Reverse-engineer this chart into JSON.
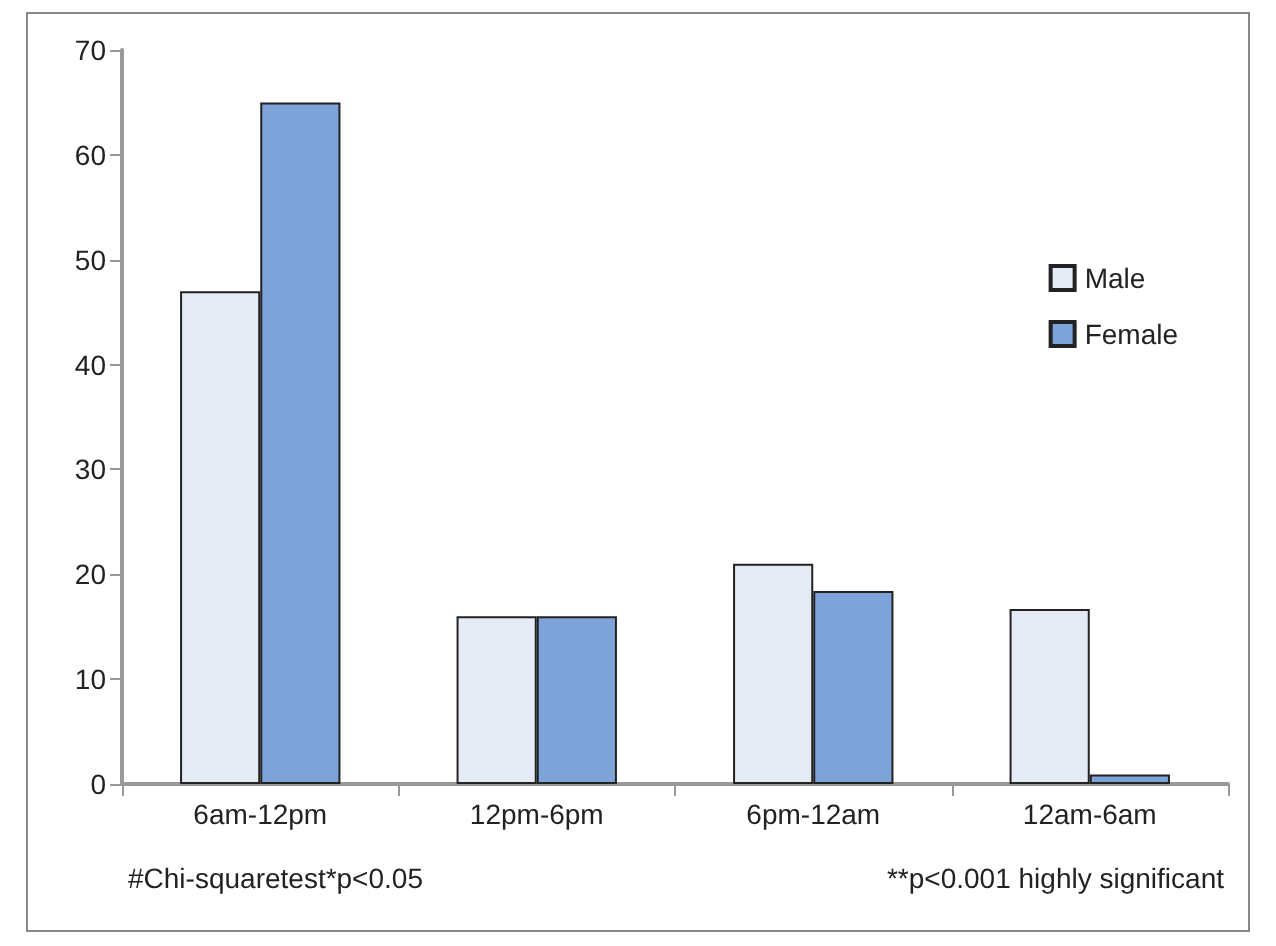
{
  "chart_data": {
    "type": "bar",
    "categories": [
      "6am-12pm",
      "12pm-6pm",
      "6pm-12am",
      "12am-6am"
    ],
    "series": [
      {
        "name": "Male",
        "color": "#e4ebf4",
        "values": [
          47,
          16,
          21,
          16.7
        ]
      },
      {
        "name": "Female",
        "color": "#7ea3d9",
        "values": [
          65,
          16,
          18.4,
          0.9
        ]
      }
    ],
    "ylim": [
      0,
      70
    ],
    "yticks": [
      0,
      10,
      20,
      30,
      40,
      50,
      60,
      70
    ],
    "grid": false,
    "legend": "right",
    "annotations": [
      "#Chi-squaretest*p<0.05",
      "**p<0.001 highly significant"
    ]
  }
}
